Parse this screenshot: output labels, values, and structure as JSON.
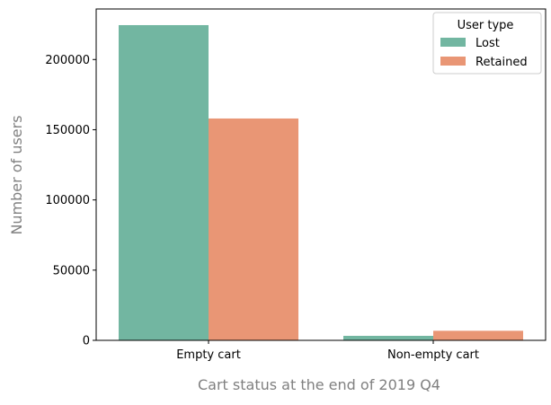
{
  "chart_data": {
    "type": "bar",
    "title": "",
    "xlabel": "Cart status at the end of 2019 Q4",
    "ylabel": "Number of users",
    "categories": [
      "Empty cart",
      "Non-empty cart"
    ],
    "series": [
      {
        "name": "Lost",
        "color": "#72B6A1",
        "values": [
          224500,
          3200
        ]
      },
      {
        "name": "Retained",
        "color": "#E99675",
        "values": [
          158000,
          6800
        ]
      }
    ],
    "ylim": [
      0,
      236000
    ],
    "yticks": [
      0,
      50000,
      100000,
      150000,
      200000
    ],
    "ytick_labels": [
      "0",
      "50000",
      "100000",
      "150000",
      "200000"
    ],
    "legend": {
      "title": "User type",
      "placement": "top-right"
    },
    "grid": false
  }
}
